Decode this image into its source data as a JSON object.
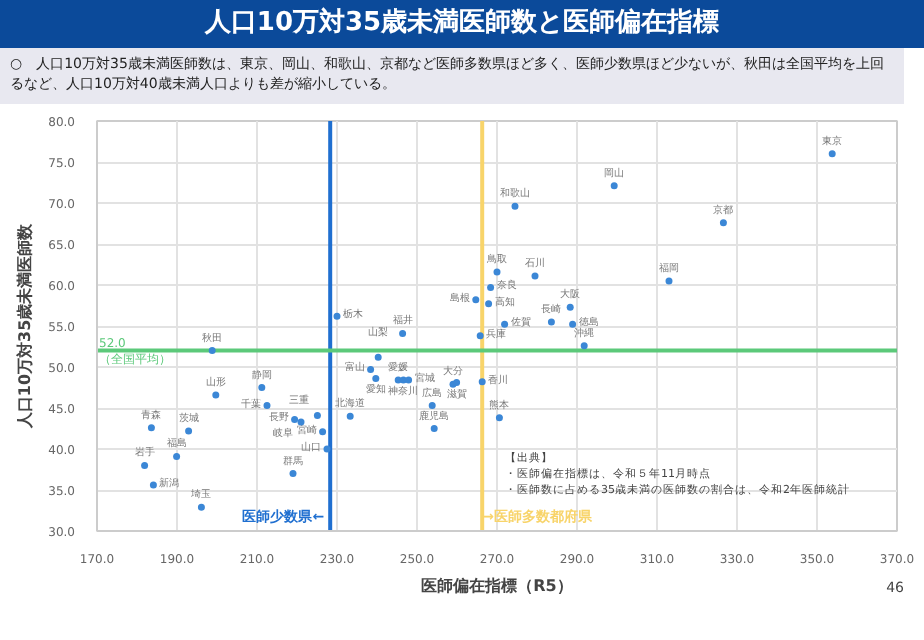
{
  "chart_data": {
    "type": "scatter",
    "title": "人口10万対35歳未満医師数と医師偏在指標",
    "subtitle": "○　人口10万対35歳未満医師数は、東京、岡山、和歌山、京都など医師多数県ほど多く、医師少数県ほど少ないが、秋田は全国平均を上回るなど、人口10万対40歳未満人口よりも差が縮小している。",
    "xlabel": "医師偏在指標（R5）",
    "ylabel": "人口10万対35歳未満医師数",
    "series": [
      {
        "color": "#3b87d6",
        "x": [
          353.8,
          299.3,
          274.5,
          326.6,
          313.0,
          270.0,
          279.5,
          268.4,
          267.9,
          264.7,
          288.3,
          283.6,
          288.9,
          271.9,
          265.8,
          291.8,
          266.3,
          270.6,
          259.0,
          259.9,
          253.8,
          254.3,
          245.3,
          246.6,
          247.9,
          239.7,
          238.4,
          240.3,
          233.3,
          246.4,
          230.0,
          227.5,
          226.4,
          225.1,
          221.0,
          219.4,
          219.0,
          212.5,
          211.2,
          196.1,
          184.1,
          189.9,
          181.9,
          192.9,
          183.6,
          199.7,
          198.8
        ],
        "values": [
          76.0,
          72.1,
          69.6,
          67.6,
          60.5,
          61.6,
          61.1,
          59.7,
          57.7,
          58.2,
          57.3,
          55.5,
          55.2,
          55.2,
          53.8,
          52.6,
          48.2,
          43.8,
          47.9,
          48.1,
          45.3,
          42.5,
          48.4,
          48.4,
          48.4,
          48.6,
          49.7,
          51.2,
          44.0,
          54.1,
          56.2,
          40.0,
          42.1,
          44.1,
          43.3,
          43.6,
          37.0,
          45.3,
          47.5,
          32.9,
          35.6,
          39.1,
          38.0,
          42.2,
          42.6,
          46.6,
          52.0
        ]
      }
    ],
    "xlim": [
      170,
      370
    ],
    "ylim": [
      30,
      80
    ],
    "xticks": [
      {
        "value": 170,
        "label": "170.0"
      },
      {
        "value": 190,
        "label": "190.0"
      },
      {
        "value": 210,
        "label": "210.0"
      },
      {
        "value": 230,
        "label": "230.0"
      },
      {
        "value": 250,
        "label": "250.0"
      },
      {
        "value": 270,
        "label": "270.0"
      },
      {
        "value": 290,
        "label": "290.0"
      },
      {
        "value": 310,
        "label": "310.0"
      },
      {
        "value": 330,
        "label": "330.0"
      },
      {
        "value": 350,
        "label": "350.0"
      },
      {
        "value": 370,
        "label": "370.0"
      }
    ],
    "yticks": [
      {
        "value": 30,
        "label": "30.0"
      },
      {
        "value": 35,
        "label": "35.0"
      },
      {
        "value": 40,
        "label": "40.0"
      },
      {
        "value": 45,
        "label": "45.0"
      },
      {
        "value": 50,
        "label": "50.0"
      },
      {
        "value": 55,
        "label": "55.0"
      },
      {
        "value": 60,
        "label": "60.0"
      },
      {
        "value": 65,
        "label": "65.0"
      },
      {
        "value": 70,
        "label": "70.0"
      },
      {
        "value": 75,
        "label": "75.0"
      },
      {
        "value": 80,
        "label": "80.0"
      }
    ],
    "grid": true,
    "marker": "circle",
    "ref_lines": [
      {
        "axis": "x",
        "value": 228.3,
        "label": "医師少数県←",
        "color": "#1f6fd0"
      },
      {
        "axis": "x",
        "value": 266.3,
        "label": "→医師多数都府県",
        "color": "#f8d46a"
      },
      {
        "axis": "y",
        "value": 52.0,
        "label": "52.0",
        "color": "#5cc97a"
      }
    ],
    "annotations": [
      {
        "text": "東京",
        "x": 353.8,
        "y": 76.0
      },
      {
        "text": "岡山",
        "x": 299.3,
        "y": 72.1
      },
      {
        "text": "和歌山",
        "x": 274.5,
        "y": 69.6
      },
      {
        "text": "京都",
        "x": 326.6,
        "y": 67.6
      },
      {
        "text": "福岡",
        "x": 313.0,
        "y": 60.5
      },
      {
        "text": "鳥取",
        "x": 270.0,
        "y": 61.6
      },
      {
        "text": "石川",
        "x": 279.5,
        "y": 61.1
      },
      {
        "text": "奈良",
        "x": 268.4,
        "y": 59.7
      },
      {
        "text": "高知",
        "x": 267.9,
        "y": 57.7
      },
      {
        "text": "島根",
        "x": 264.7,
        "y": 58.2
      },
      {
        "text": "大阪",
        "x": 288.3,
        "y": 57.3
      },
      {
        "text": "長崎",
        "x": 283.6,
        "y": 55.5
      },
      {
        "text": "徳島",
        "x": 288.9,
        "y": 55.2
      },
      {
        "text": "佐賀",
        "x": 271.9,
        "y": 55.2
      },
      {
        "text": "兵庫",
        "x": 265.8,
        "y": 53.8
      },
      {
        "text": "沖縄",
        "x": 291.8,
        "y": 52.6
      },
      {
        "text": "香川",
        "x": 266.3,
        "y": 48.2
      },
      {
        "text": "熊本",
        "x": 270.6,
        "y": 43.8
      },
      {
        "text": "大分",
        "x": 259.0,
        "y": 47.9
      },
      {
        "text": "滋賀",
        "x": 259.9,
        "y": 48.1
      },
      {
        "text": "広島",
        "x": 253.8,
        "y": 45.3
      },
      {
        "text": "鹿児島",
        "x": 254.3,
        "y": 42.5
      },
      {
        "text": "愛媛",
        "x": 245.3,
        "y": 48.4
      },
      {
        "text": "神奈川",
        "x": 246.6,
        "y": 48.4
      },
      {
        "text": "宮城",
        "x": 247.9,
        "y": 48.4
      },
      {
        "text": "愛知",
        "x": 239.7,
        "y": 48.6
      },
      {
        "text": "富山",
        "x": 238.4,
        "y": 49.7
      },
      {
        "text": "山梨",
        "x": 240.3,
        "y": 51.2
      },
      {
        "text": "北海道",
        "x": 233.3,
        "y": 44.0
      },
      {
        "text": "福井",
        "x": 246.4,
        "y": 54.1
      },
      {
        "text": "栃木",
        "x": 230.0,
        "y": 56.2
      },
      {
        "text": "山口",
        "x": 227.5,
        "y": 40.0
      },
      {
        "text": "宮崎",
        "x": 226.4,
        "y": 42.1
      },
      {
        "text": "三重",
        "x": 225.1,
        "y": 44.1
      },
      {
        "text": "岐阜",
        "x": 221.0,
        "y": 43.3
      },
      {
        "text": "長野",
        "x": 219.4,
        "y": 43.6
      },
      {
        "text": "群馬",
        "x": 219.0,
        "y": 37.0
      },
      {
        "text": "千葉",
        "x": 212.5,
        "y": 45.3
      },
      {
        "text": "静岡",
        "x": 211.2,
        "y": 47.5
      },
      {
        "text": "埼玉",
        "x": 196.1,
        "y": 32.9
      },
      {
        "text": "新潟",
        "x": 184.1,
        "y": 35.6
      },
      {
        "text": "福島",
        "x": 189.9,
        "y": 39.1
      },
      {
        "text": "岩手",
        "x": 181.9,
        "y": 38.0
      },
      {
        "text": "茨城",
        "x": 192.9,
        "y": 42.2
      },
      {
        "text": "青森",
        "x": 183.6,
        "y": 42.6
      },
      {
        "text": "山形",
        "x": 199.7,
        "y": 46.6
      },
      {
        "text": "秋田",
        "x": 198.8,
        "y": 52.0
      },
      {
        "text": "（全国平均）",
        "x": 170,
        "y": 52.0
      },
      "【出典】",
      "・医師偏在指標は、令和５年11月時点",
      "・医師数に占める35歳未満の医師数の割合は、令和2年医師統計",
      "46"
    ]
  }
}
